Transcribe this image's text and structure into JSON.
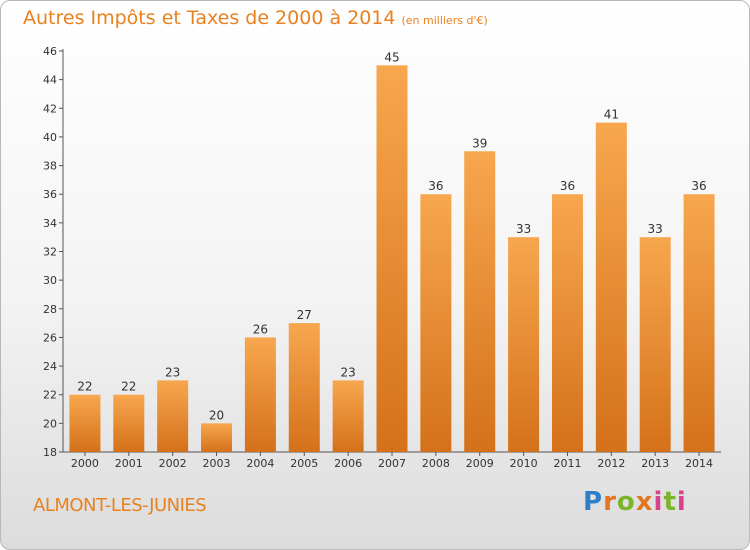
{
  "header": {
    "title": "Autres Impôts et Taxes de 2000 à 2014",
    "unit": "(en milliers d'€)"
  },
  "footer": {
    "commune": "ALMONT-LES-JUNIES",
    "logo_text": "Proxiti"
  },
  "colors": {
    "bar_top": "#f7a74e",
    "bar_bottom": "#d4711a",
    "title": "#e8811e"
  },
  "chart_data": {
    "type": "bar",
    "title": "Autres Impôts et Taxes de 2000 à 2014",
    "subtitle": "(en milliers d'€)",
    "xlabel": "",
    "ylabel": "",
    "categories": [
      "2000",
      "2001",
      "2002",
      "2003",
      "2004",
      "2005",
      "2006",
      "2007",
      "2008",
      "2009",
      "2010",
      "2011",
      "2012",
      "2013",
      "2014"
    ],
    "values": [
      22,
      22,
      23,
      20,
      26,
      27,
      23,
      45,
      36,
      39,
      33,
      36,
      41,
      33,
      36
    ],
    "ylim": [
      18,
      46
    ],
    "yticks": [
      18,
      20,
      22,
      24,
      26,
      28,
      30,
      32,
      34,
      36,
      38,
      40,
      42,
      44,
      46
    ],
    "grid": false,
    "legend": "none"
  }
}
